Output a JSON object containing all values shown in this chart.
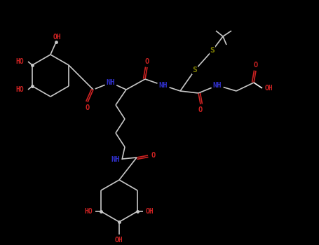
{
  "background": "#000000",
  "C_color": "#c8c8c8",
  "N_color": "#3030cc",
  "O_color": "#cc2222",
  "S_color": "#808000",
  "bond_lw": 1.2,
  "figsize": [
    4.55,
    3.5
  ],
  "dpi": 100,
  "xlim": [
    0,
    455
  ],
  "ylim": [
    0,
    350
  ]
}
